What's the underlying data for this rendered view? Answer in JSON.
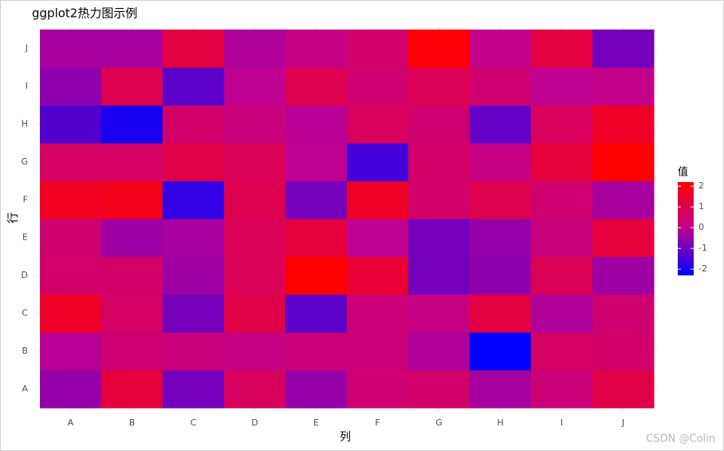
{
  "chart_data": {
    "type": "heatmap",
    "title": "ggplot2热力图示例",
    "x_label": "列",
    "y_label": "行",
    "x_categories": [
      "A",
      "B",
      "C",
      "D",
      "E",
      "F",
      "G",
      "H",
      "I",
      "J"
    ],
    "y_categories": [
      "A",
      "B",
      "C",
      "D",
      "E",
      "F",
      "G",
      "H",
      "I",
      "J"
    ],
    "values": [
      [
        -0.5,
        1.3,
        -0.9,
        0.8,
        -0.5,
        0.5,
        0.6,
        -0.3,
        0.4,
        1.1
      ],
      [
        -0.1,
        0.5,
        0.3,
        0.2,
        0.4,
        0.4,
        -0.2,
        -2.4,
        0.7,
        0.6
      ],
      [
        1.6,
        0.7,
        -0.9,
        1.1,
        -1.2,
        0.4,
        0.2,
        1.2,
        -0.2,
        0.5
      ],
      [
        0.6,
        0.6,
        -0.4,
        0.9,
        2.2,
        1.4,
        -0.9,
        -0.6,
        0.9,
        -0.4
      ],
      [
        0.5,
        -0.4,
        -0.3,
        0.9,
        1.3,
        0.0,
        -0.9,
        -0.5,
        0.3,
        1.3
      ],
      [
        1.7,
        1.8,
        -1.7,
        1.0,
        -0.9,
        1.6,
        0.6,
        1.0,
        0.5,
        -0.3
      ],
      [
        0.7,
        0.7,
        1.1,
        0.9,
        0.0,
        -1.5,
        0.6,
        0.2,
        1.3,
        2.2
      ],
      [
        -1.3,
        -2.0,
        0.6,
        0.3,
        -0.1,
        0.8,
        0.5,
        -1.1,
        0.8,
        1.6
      ],
      [
        -0.6,
        1.0,
        -1.2,
        0.0,
        1.0,
        0.5,
        0.9,
        0.5,
        0.0,
        0.1
      ],
      [
        -0.3,
        -0.3,
        1.2,
        -0.2,
        0.2,
        0.6,
        2.1,
        0.1,
        1.2,
        -0.9
      ]
    ],
    "legend_title": "值",
    "colorlim": [
      -2.3,
      2.2
    ],
    "colorticks": [
      -2,
      -1,
      0,
      1,
      2
    ],
    "colors": [
      "#0000ff",
      "#c00090",
      "#ff0000"
    ],
    "grid": true
  },
  "watermark": "CSDN @Colin"
}
